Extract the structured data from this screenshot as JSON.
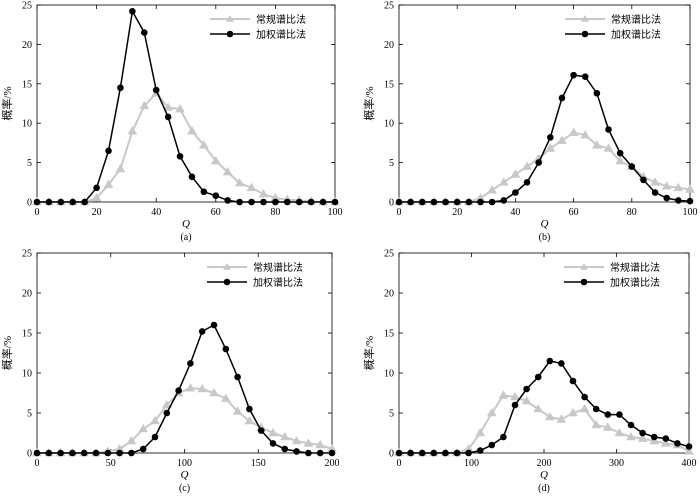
{
  "legend_labels": [
    "常规谱比法",
    "加权谱比法"
  ],
  "chart_data": [
    {
      "type": "line",
      "caption": "(a)",
      "xlabel": "Q",
      "ylabel": "概率/%",
      "xlim": [
        0,
        100
      ],
      "ylim": [
        0,
        25
      ],
      "xticks": [
        0,
        20,
        40,
        60,
        80,
        100
      ],
      "yticks": [
        0,
        5,
        10,
        15,
        20,
        25
      ],
      "legend_position": "top-right",
      "x": [
        0,
        4,
        8,
        12,
        16,
        20,
        24,
        28,
        32,
        36,
        40,
        44,
        48,
        52,
        56,
        60,
        64,
        68,
        72,
        76,
        80,
        84,
        88,
        92,
        96,
        100
      ],
      "series": [
        {
          "name": "常规谱比法",
          "color": "#c8c8c8",
          "marker": "triangle",
          "values": [
            0,
            0,
            0,
            0,
            0,
            0.5,
            2.2,
            4.2,
            9,
            12.2,
            13.8,
            12,
            11.8,
            9,
            7.2,
            5.2,
            3.8,
            2.4,
            1.8,
            1,
            0.5,
            0.3,
            0.2,
            0.1,
            0,
            0
          ]
        },
        {
          "name": "加权谱比法",
          "color": "#000000",
          "marker": "circle",
          "values": [
            0,
            0,
            0,
            0,
            0,
            1.8,
            6.5,
            14.5,
            24.2,
            21.5,
            14.2,
            10.8,
            5.8,
            3.2,
            1.3,
            0.8,
            0.2,
            0,
            0,
            0,
            0,
            0,
            0,
            0,
            0,
            0
          ]
        }
      ]
    },
    {
      "type": "line",
      "caption": "(b)",
      "xlabel": "Q",
      "ylabel": "概率/%",
      "xlim": [
        0,
        100
      ],
      "ylim": [
        0,
        25
      ],
      "xticks": [
        0,
        20,
        40,
        60,
        80,
        100
      ],
      "yticks": [
        0,
        5,
        10,
        15,
        20,
        25
      ],
      "legend_position": "top-right",
      "x": [
        0,
        4,
        8,
        12,
        16,
        20,
        24,
        28,
        32,
        36,
        40,
        44,
        48,
        52,
        56,
        60,
        64,
        68,
        72,
        76,
        80,
        84,
        88,
        92,
        96,
        100
      ],
      "series": [
        {
          "name": "常规谱比法",
          "color": "#c8c8c8",
          "marker": "triangle",
          "values": [
            0,
            0,
            0,
            0,
            0,
            0,
            0,
            0.5,
            1.5,
            2.5,
            3.5,
            4.5,
            5.5,
            6.8,
            7.8,
            8.8,
            8.5,
            7.2,
            6.8,
            5.2,
            4.5,
            3.2,
            2.5,
            2,
            1.8,
            1.6
          ]
        },
        {
          "name": "加权谱比法",
          "color": "#000000",
          "marker": "circle",
          "values": [
            0,
            0,
            0,
            0,
            0,
            0,
            0,
            0,
            0,
            0.2,
            1.2,
            2.5,
            5,
            8.2,
            13.2,
            16.1,
            15.9,
            13.8,
            9.2,
            6.2,
            4.5,
            2.8,
            1.2,
            0.5,
            0.2,
            0.1
          ]
        }
      ]
    },
    {
      "type": "line",
      "caption": "(c)",
      "xlabel": "Q",
      "ylabel": "概率/%",
      "xlim": [
        0,
        200
      ],
      "ylim": [
        0,
        25
      ],
      "xticks": [
        0,
        50,
        100,
        150,
        200
      ],
      "yticks": [
        0,
        5,
        10,
        15,
        20,
        25
      ],
      "legend_position": "top-right",
      "x": [
        0,
        8,
        16,
        24,
        32,
        40,
        48,
        56,
        64,
        72,
        80,
        88,
        96,
        104,
        112,
        120,
        128,
        136,
        144,
        152,
        160,
        168,
        176,
        184,
        192,
        200
      ],
      "series": [
        {
          "name": "常规谱比法",
          "color": "#c8c8c8",
          "marker": "triangle",
          "values": [
            0,
            0,
            0,
            0,
            0,
            0,
            0.2,
            0.5,
            1.5,
            3,
            4,
            6,
            7.5,
            8.1,
            8,
            7.5,
            6.8,
            5.2,
            4,
            3.2,
            2.5,
            2,
            1.5,
            1.2,
            1,
            0.5
          ]
        },
        {
          "name": "加权谱比法",
          "color": "#000000",
          "marker": "circle",
          "values": [
            0,
            0,
            0,
            0,
            0,
            0,
            0,
            0,
            0,
            0.5,
            2,
            5,
            7.8,
            11.2,
            15.2,
            16,
            13,
            9.5,
            5.5,
            2.8,
            1.2,
            0.5,
            0.2,
            0,
            0,
            0
          ]
        }
      ]
    },
    {
      "type": "line",
      "caption": "(d)",
      "xlabel": "Q",
      "ylabel": "概率/%",
      "xlim": [
        0,
        400
      ],
      "ylim": [
        0,
        25
      ],
      "xticks": [
        0,
        100,
        200,
        300,
        400
      ],
      "yticks": [
        0,
        5,
        10,
        15,
        20,
        25
      ],
      "legend_position": "top-right",
      "x": [
        0,
        16,
        32,
        48,
        64,
        80,
        96,
        112,
        128,
        144,
        160,
        176,
        192,
        208,
        224,
        240,
        256,
        272,
        288,
        304,
        320,
        336,
        352,
        368,
        384,
        400
      ],
      "series": [
        {
          "name": "常规谱比法",
          "color": "#c8c8c8",
          "marker": "triangle",
          "values": [
            0,
            0,
            0,
            0,
            0,
            0,
            0.5,
            2.5,
            5,
            7.2,
            7,
            6.5,
            5.5,
            4.5,
            4.2,
            5,
            5.5,
            3.5,
            3.2,
            2.5,
            2,
            1.8,
            1.5,
            1.2,
            1,
            0.2
          ]
        },
        {
          "name": "加权谱比法",
          "color": "#000000",
          "marker": "circle",
          "values": [
            0,
            0,
            0,
            0,
            0,
            0,
            0,
            0.3,
            1,
            2,
            6,
            8,
            9.5,
            11.5,
            11.2,
            9,
            7,
            5.5,
            4.8,
            4.8,
            3.5,
            2.5,
            2,
            1.8,
            1.2,
            0.8
          ]
        }
      ]
    }
  ]
}
